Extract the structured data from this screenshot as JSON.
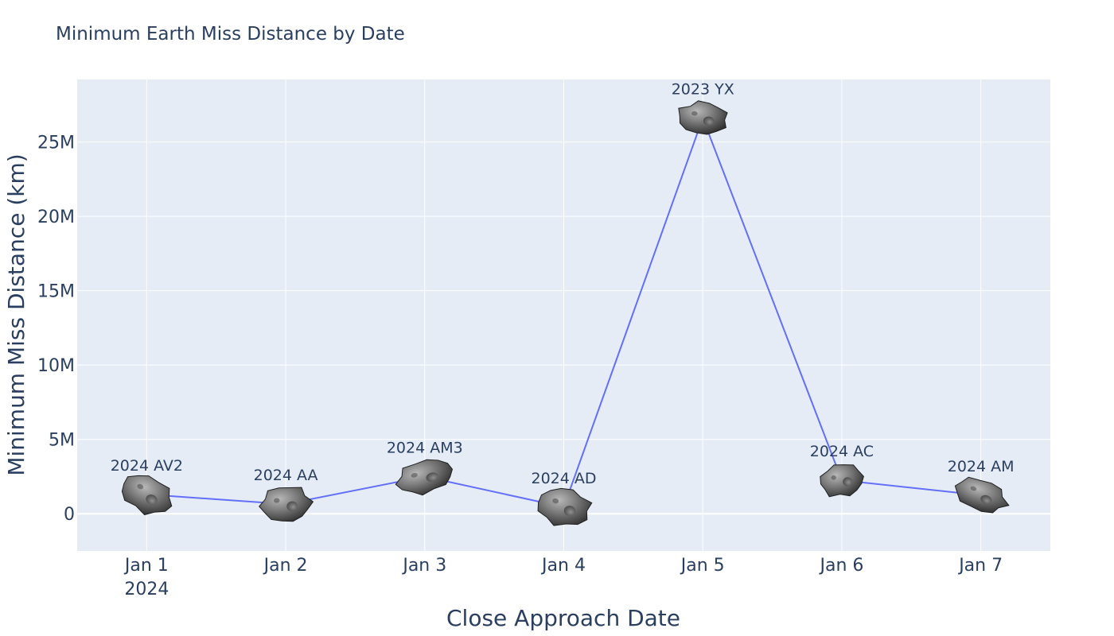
{
  "chart_data": {
    "type": "line",
    "title": "Minimum Earth Miss Distance by Date",
    "xlabel": "Close Approach Date",
    "ylabel": "Minimum Miss Distance (km)",
    "x": [
      "2024-01-01",
      "2024-01-02",
      "2024-01-03",
      "2024-01-04",
      "2024-01-05",
      "2024-01-06",
      "2024-01-07"
    ],
    "x_tick_labels": [
      "Jan 1",
      "Jan 2",
      "Jan 3",
      "Jan 4",
      "Jan 5",
      "Jan 6",
      "Jan 7"
    ],
    "x_tick_sublabel": "2024",
    "xlim": [
      "2023-12-31 12:00",
      "2024-01-07 12:00"
    ],
    "y_ticks": [
      0,
      5000000,
      10000000,
      15000000,
      20000000,
      25000000
    ],
    "y_tick_labels": [
      "0",
      "5M",
      "10M",
      "15M",
      "20M",
      "25M"
    ],
    "ylim": [
      -2500000,
      29200000
    ],
    "series": [
      {
        "color": "#636efa",
        "values": [
          1300000,
          650000,
          2500000,
          450000,
          26600000,
          2250000,
          1250000
        ],
        "point_labels": [
          "2024 AV2",
          "2024 AA",
          "2024 AM3",
          "2024 AD",
          "2023 YX",
          "2024 AC",
          "2024 AM"
        ],
        "marker_icon": "asteroid-icon"
      }
    ],
    "grid": true,
    "plot_background": "#e5ecf6",
    "grid_color": "#ffffff"
  }
}
